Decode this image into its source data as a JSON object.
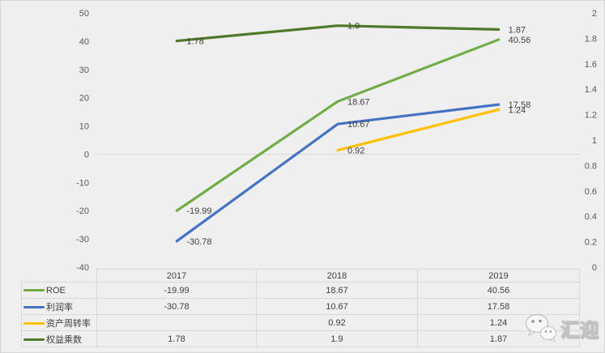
{
  "chart_data": {
    "type": "line",
    "title": "",
    "x": [
      "2017",
      "2018",
      "2019"
    ],
    "series": [
      {
        "name": "ROE",
        "axis": "left",
        "color": "#70AD47",
        "values": [
          -19.99,
          18.67,
          40.56
        ],
        "labels": [
          "-19.99",
          "18.67",
          "40.56"
        ]
      },
      {
        "name": "利润率",
        "axis": "left",
        "color": "#4472C4",
        "values": [
          -30.78,
          10.67,
          17.58
        ],
        "labels": [
          "-30.78",
          "10.67",
          "17.58"
        ]
      },
      {
        "name": "资产周转率",
        "axis": "right",
        "color": "#FFC000",
        "values": [
          null,
          0.92,
          1.24
        ],
        "labels": [
          "",
          "0.92",
          "1.24"
        ]
      },
      {
        "name": "权益乘数",
        "axis": "right",
        "color": "#4E7A2A",
        "values": [
          1.78,
          1.9,
          1.87
        ],
        "labels": [
          "1.78",
          "1.9",
          "1.87"
        ]
      }
    ],
    "left_axis": {
      "min": -40,
      "max": 50,
      "ticks": [
        "50",
        "40",
        "30",
        "20",
        "10",
        "0",
        "-10",
        "-20",
        "-30",
        "-40"
      ]
    },
    "right_axis": {
      "min": 0,
      "max": 2,
      "ticks": [
        "2",
        "1.8",
        "1.6",
        "1.4",
        "1.2",
        "1",
        "0.8",
        "0.6",
        "0.4",
        "0.2",
        "0"
      ]
    },
    "grid": "zero-line-only",
    "legend_position": "data-table-left-keys"
  },
  "colors": {
    "background": "#efefef",
    "gridline": "#d9d9d9",
    "tick_text": "#595959",
    "label_text": "#404040",
    "table_border": "#d9d9d9"
  },
  "watermark": {
    "text": "汇迎",
    "icon": "wechat-bubbles-icon"
  }
}
